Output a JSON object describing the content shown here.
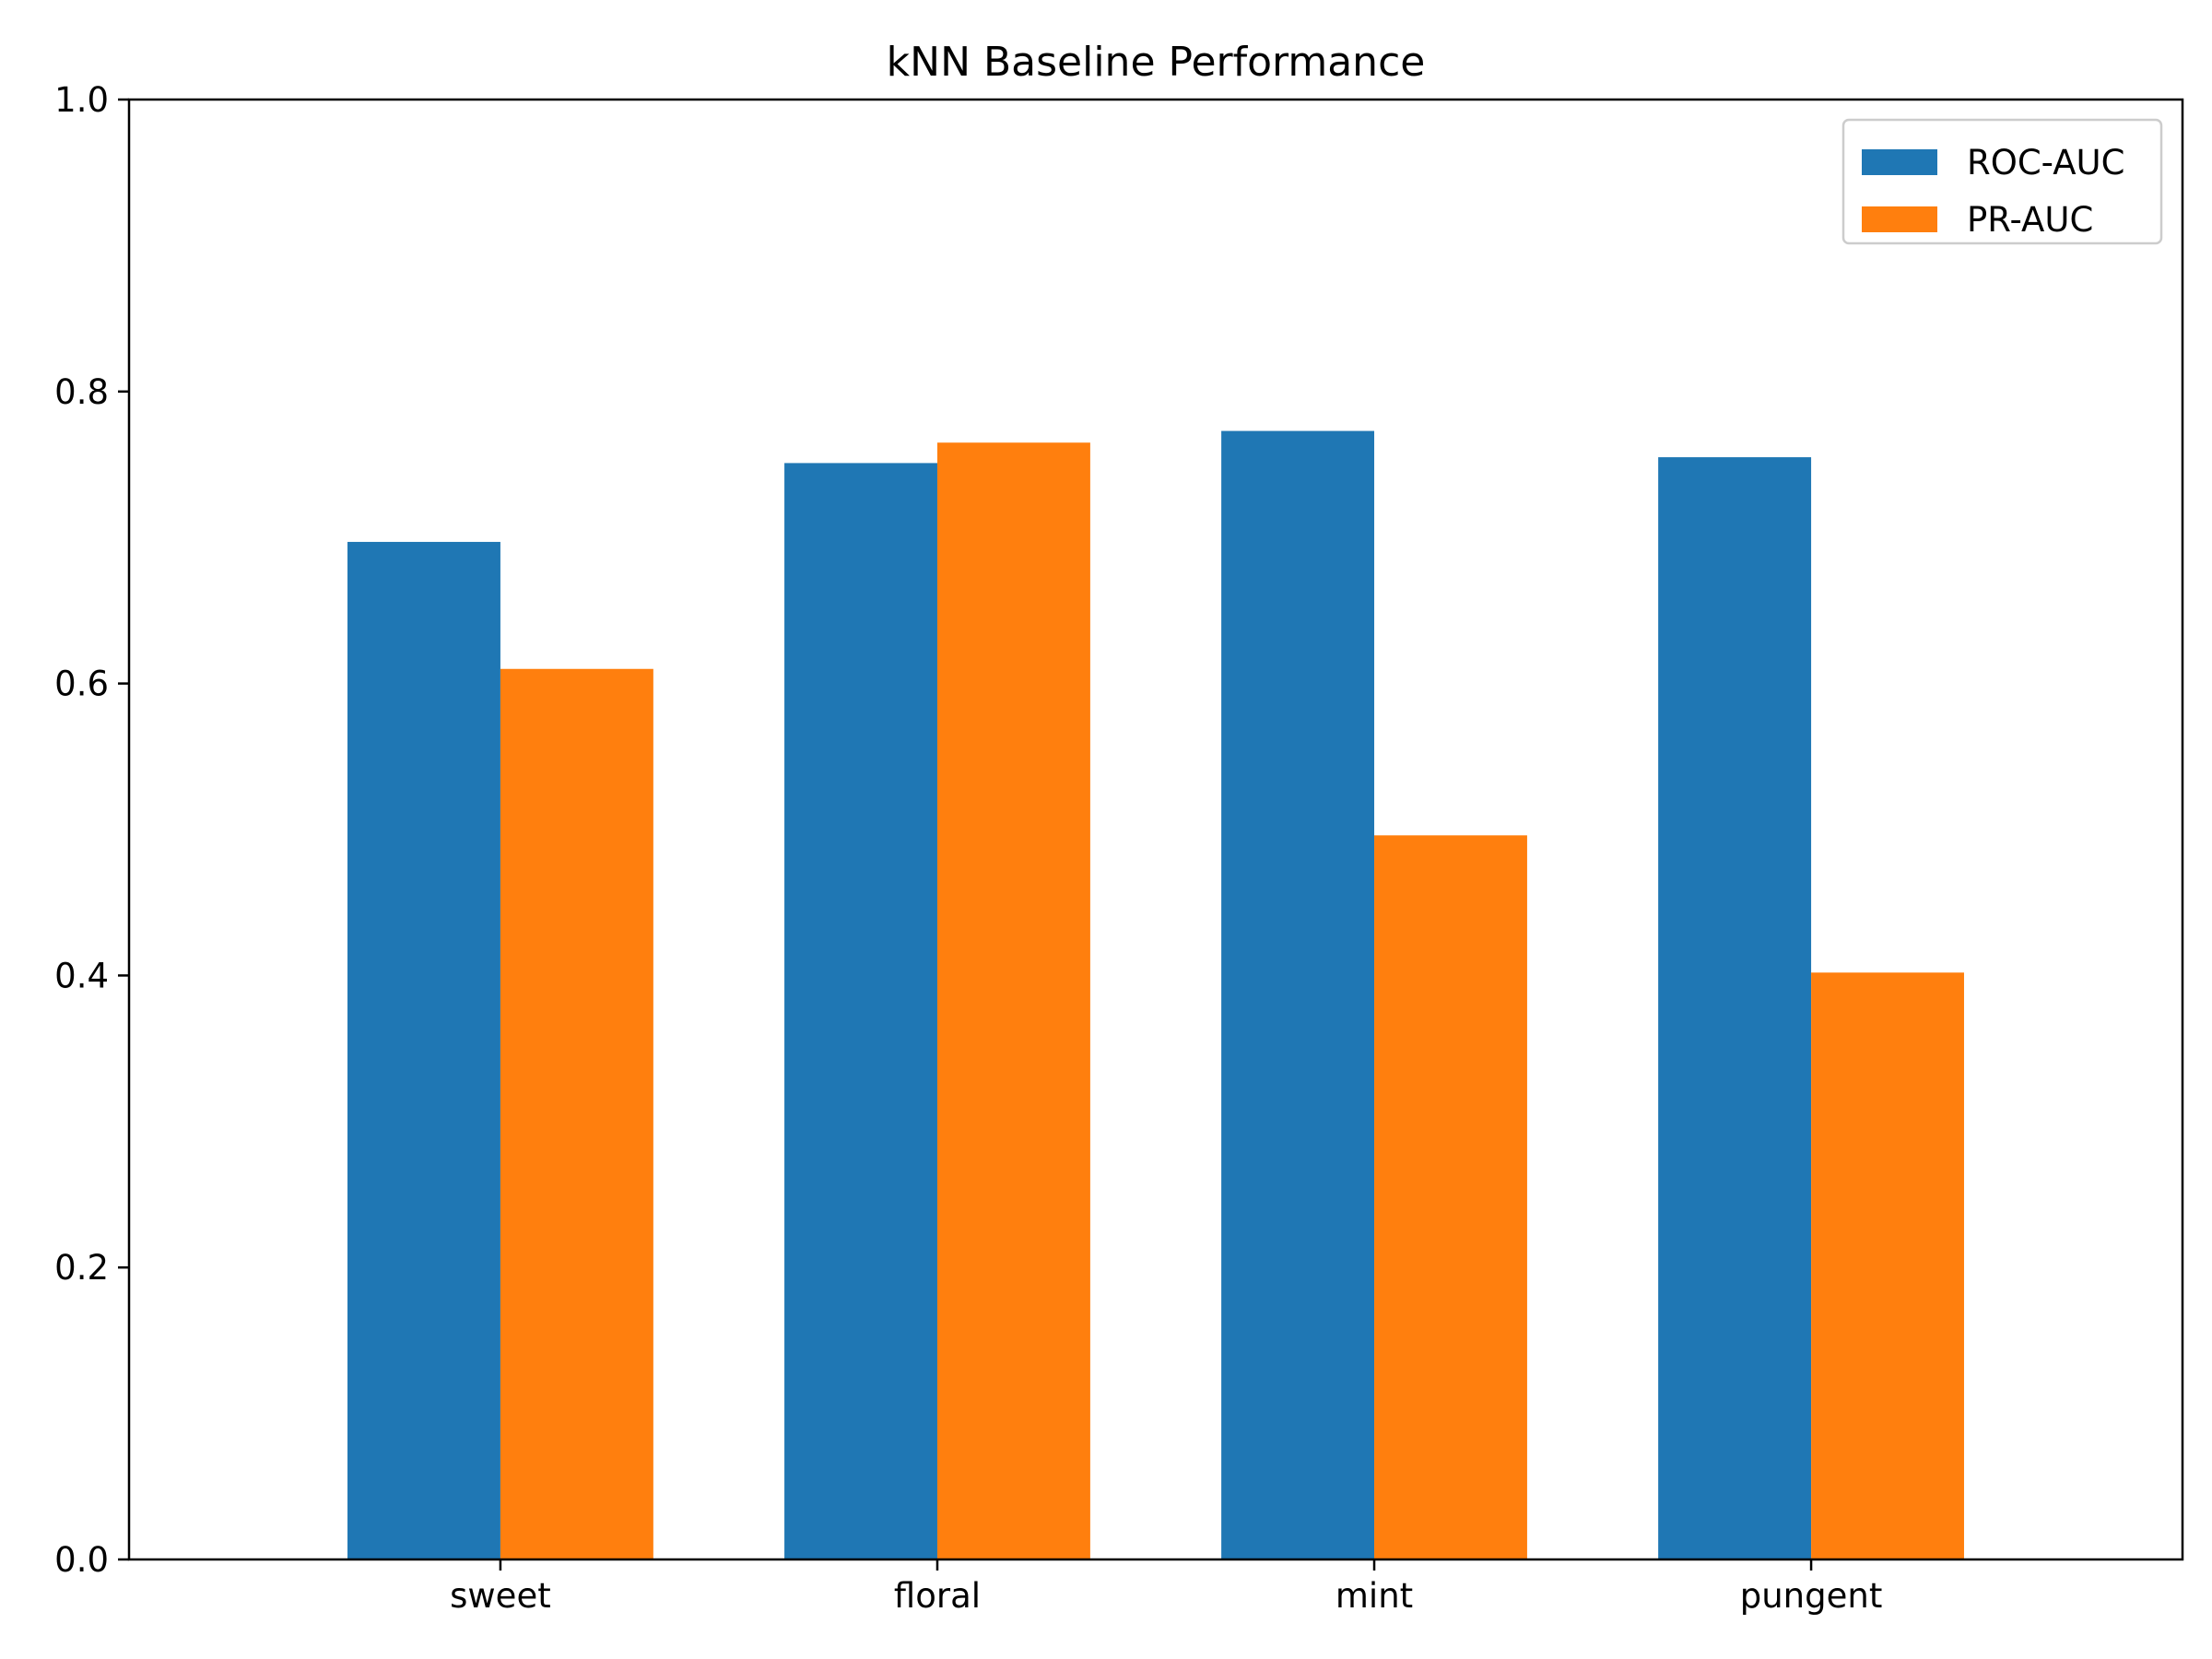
{
  "chart_data": {
    "type": "bar",
    "title": "kNN Baseline Performance",
    "xlabel": "",
    "ylabel": "",
    "categories": [
      "sweet",
      "floral",
      "mint",
      "pungent"
    ],
    "series": [
      {
        "name": "ROC-AUC",
        "color": "#1f77b4",
        "values": [
          0.697,
          0.751,
          0.773,
          0.755
        ]
      },
      {
        "name": "PR-AUC",
        "color": "#ff7f0e",
        "values": [
          0.61,
          0.765,
          0.496,
          0.402
        ]
      }
    ],
    "ylim": [
      0,
      1.0
    ],
    "yticks": [
      0.0,
      0.2,
      0.4,
      0.6,
      0.8,
      1.0
    ],
    "ytick_labels": [
      "0.0",
      "0.2",
      "0.4",
      "0.6",
      "0.8",
      "1.0"
    ],
    "grid": false,
    "legend_position": "top-right"
  }
}
